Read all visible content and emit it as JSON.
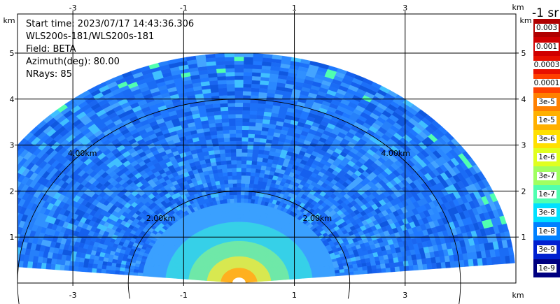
{
  "info": {
    "start_time": "Start time: 2023/07/17 14:43:36.306",
    "instrument": "WLS200s-181/WLS200s-181",
    "field": "Field: BETA",
    "azimuth": "Azimuth(deg): 80.00",
    "nrays": "NRays: 85"
  },
  "chart_data": {
    "type": "heatmap",
    "subtype": "RHI polar sector",
    "x_unit": "km",
    "y_unit": "km",
    "xlim": [
      -4.0,
      5.0
    ],
    "ylim": [
      0.0,
      5.85
    ],
    "x_ticks": [
      -3,
      -1,
      1,
      3
    ],
    "y_ticks": [
      1,
      2,
      3,
      4,
      5
    ],
    "x_tick_labels": [
      "-3",
      "-1",
      "1",
      "3"
    ],
    "y_tick_labels": [
      "1",
      "2",
      "3",
      "4",
      "5"
    ],
    "max_range_km": 5.0,
    "range_rings": [
      {
        "radius_km": 2.0,
        "label": "2.00km"
      },
      {
        "radius_km": 4.0,
        "label": "4.00km"
      }
    ],
    "sector_elevation_deg": [
      5,
      175
    ],
    "grid": true,
    "colorbar": {
      "title": "-1 sr",
      "labels": [
        "0.003",
        "0.001",
        "0.0003",
        "0.0001",
        "3e-5",
        "1e-5",
        "3e-6",
        "1e-6",
        "3e-7",
        "1e-7",
        "3e-8",
        "1e-8",
        "3e-9",
        "1e-9"
      ],
      "colors": [
        "#b00000",
        "#d00000",
        "#e81000",
        "#ff4000",
        "#ff8000",
        "#ffb000",
        "#ffe000",
        "#e0ff20",
        "#a0ff60",
        "#50ffb0",
        "#00e0ff",
        "#0080ff",
        "#0020d0",
        "#000080"
      ]
    },
    "dominant_color": "#1a6cf5",
    "near_range_colors": [
      "#3aa0ff",
      "#36d0e8",
      "#6fe8a8",
      "#d8e850",
      "#ffb020"
    ]
  }
}
